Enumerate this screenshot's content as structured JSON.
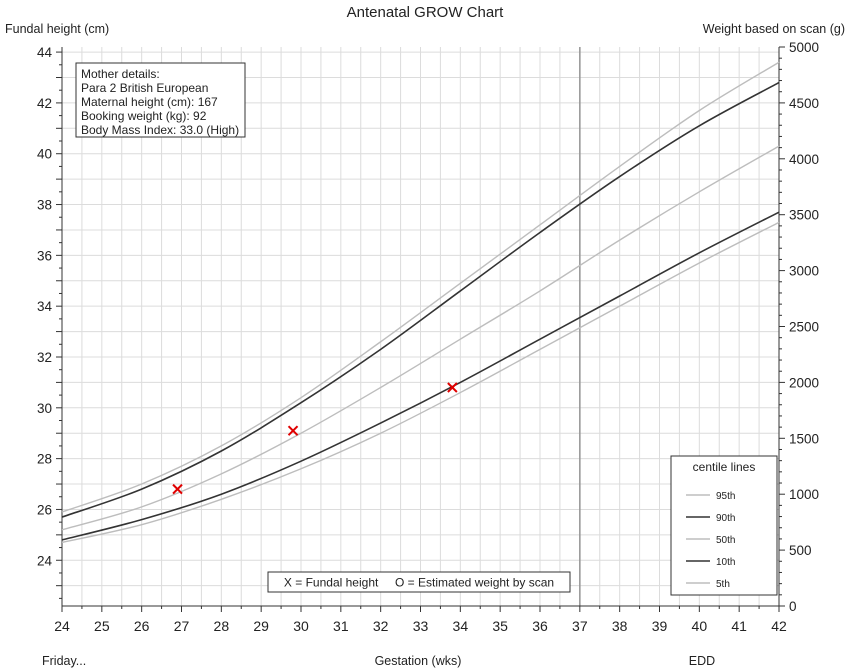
{
  "chart_data": {
    "type": "line",
    "title": "Antenatal GROW Chart",
    "ylabel": "Fundal height (cm)",
    "ylabel_right": "Weight based on scan (g)",
    "xlabel": "Gestation (wks)",
    "x_left_note": "Friday...",
    "x_edd_label": "EDD",
    "xlim": [
      24,
      42
    ],
    "ylim": [
      22.2,
      44.2
    ],
    "ylim_right": [
      0,
      5000
    ],
    "x_ticks": [
      24,
      25,
      26,
      27,
      28,
      29,
      30,
      31,
      32,
      33,
      34,
      35,
      36,
      37,
      38,
      39,
      40,
      41,
      42
    ],
    "y_ticks": [
      24,
      26,
      28,
      30,
      32,
      34,
      36,
      38,
      40,
      42,
      44
    ],
    "y_ticks_right": [
      0,
      500,
      1000,
      1500,
      2000,
      2500,
      3000,
      3500,
      4000,
      4500,
      5000
    ],
    "grid": true,
    "edd_week": 37,
    "x": [
      24,
      26,
      28,
      30,
      32,
      34,
      36,
      38,
      40,
      42
    ],
    "series": [
      {
        "name": "95th",
        "color": "#bdbdbd",
        "values": [
          25.9,
          27.0,
          28.5,
          30.4,
          32.6,
          34.9,
          37.2,
          39.5,
          41.7,
          43.6
        ]
      },
      {
        "name": "90th",
        "color": "#333333",
        "values": [
          25.7,
          26.8,
          28.3,
          30.2,
          32.3,
          34.6,
          36.9,
          39.1,
          41.1,
          42.8
        ]
      },
      {
        "name": "50th",
        "color": "#bdbdbd",
        "values": [
          25.2,
          26.1,
          27.4,
          29.0,
          30.8,
          32.7,
          34.6,
          36.6,
          38.5,
          40.3
        ]
      },
      {
        "name": "10th",
        "color": "#333333",
        "values": [
          24.8,
          25.6,
          26.6,
          27.9,
          29.4,
          31.0,
          32.7,
          34.4,
          36.1,
          37.7
        ]
      },
      {
        "name": "5th",
        "color": "#bdbdbd",
        "values": [
          24.7,
          25.4,
          26.4,
          27.6,
          29.0,
          30.6,
          32.3,
          34.0,
          35.7,
          37.3
        ]
      }
    ],
    "fundal_heights": [
      {
        "x": 26.9,
        "y": 26.8
      },
      {
        "x": 29.8,
        "y": 29.1
      },
      {
        "x": 33.8,
        "y": 30.8
      }
    ],
    "marker_color": "#e00000",
    "legend": {
      "title": "centile lines",
      "placement": "bottom-right",
      "entries": [
        "95th",
        "90th",
        "50th",
        "10th",
        "5th"
      ]
    },
    "key_text": "X = Fundal height     O = Estimated weight by scan",
    "mother_details": [
      "Mother details:",
      "Para 2   British European",
      "Maternal height (cm): 167",
      "Booking weight (kg): 92",
      "Body Mass Index: 33.0 (High)"
    ]
  }
}
